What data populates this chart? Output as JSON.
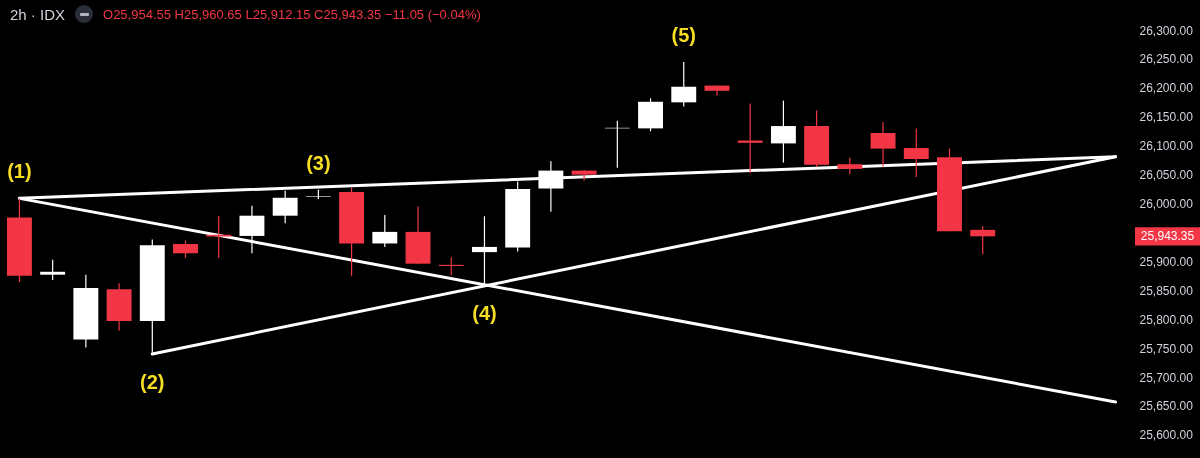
{
  "chart_data": {
    "type": "candlestick",
    "title": "2h · IDX",
    "subtitle": "O25,954.55 H25,960.65 L25,912.15 C25,943.35 −11.05 (−0.04%)",
    "categories": [
      null,
      null,
      null,
      null,
      null,
      null,
      null,
      null,
      null,
      null,
      null,
      null,
      null,
      null,
      null,
      null,
      null,
      null,
      null,
      null,
      null,
      null,
      null,
      null,
      null,
      null,
      null,
      null,
      null,
      null,
      null,
      null,
      null,
      null
    ],
    "ohlc": [
      [
        25976,
        26009,
        25864,
        25875
      ],
      [
        25877,
        25903,
        25868,
        25882
      ],
      [
        25765,
        25877,
        25751,
        25854
      ],
      [
        25852,
        25862,
        25780,
        25797
      ],
      [
        25797,
        25938,
        25740,
        25928
      ],
      [
        25930,
        25936,
        25906,
        25914
      ],
      [
        25946,
        25978,
        25906,
        25943
      ],
      [
        25944,
        25996,
        25914,
        25979
      ],
      [
        25979,
        26022,
        25966,
        26010
      ],
      [
        26012,
        26024,
        26008,
        26013
      ],
      [
        26020,
        26028,
        25875,
        25931
      ],
      [
        25931,
        25980,
        25925,
        25951
      ],
      [
        25951,
        25995,
        25895,
        25896
      ],
      [
        25894,
        25907,
        25876,
        25892
      ],
      [
        25916,
        25978,
        25859,
        25925
      ],
      [
        25924,
        26038,
        25917,
        26025
      ],
      [
        26026,
        26073,
        25986,
        26057
      ],
      [
        26057,
        26058,
        26040,
        26050
      ],
      [
        26130,
        26143,
        26062,
        26131
      ],
      [
        26130,
        26182,
        26125,
        26176
      ],
      [
        26175,
        26245,
        26168,
        26202
      ],
      [
        26204,
        26204,
        26187,
        26195
      ],
      [
        26109,
        26173,
        26053,
        26105
      ],
      [
        26104,
        26178,
        26071,
        26134
      ],
      [
        26134,
        26161,
        26063,
        26067
      ],
      [
        26068,
        26079,
        26051,
        26060
      ],
      [
        26122,
        26141,
        26064,
        26095
      ],
      [
        26096,
        26130,
        26046,
        26077
      ],
      [
        26080,
        26095,
        25952,
        25952
      ],
      [
        25954.55,
        25960.65,
        25912.15,
        25943.35
      ],
      null,
      null,
      null,
      null
    ],
    "colors": [
      "#f23645",
      "#ffffff",
      "#ffffff",
      "#f23645",
      "#ffffff",
      "#f23645",
      "#f23645",
      "#ffffff",
      "#ffffff",
      "#ffffff",
      "#f23645",
      "#ffffff",
      "#f23645",
      "#f23645",
      "#ffffff",
      "#ffffff",
      "#ffffff",
      "#f23645",
      "#ffffff",
      "#ffffff",
      "#ffffff",
      "#f23645",
      "#f23645",
      "#ffffff",
      "#f23645",
      "#f23645",
      "#f23645",
      "#f23645",
      "#f23645",
      "#f23645",
      null,
      null,
      null,
      null
    ],
    "series": [
      {
        "type": "line",
        "color": "#ffffff",
        "values": [
          26009,
          null,
          null,
          null,
          null,
          null,
          null,
          null,
          null,
          null,
          null,
          null,
          null,
          null,
          null,
          null,
          null,
          null,
          null,
          null,
          null,
          null,
          null,
          null,
          null,
          null,
          null,
          null,
          null,
          null,
          null,
          null,
          null,
          26081
        ]
      },
      {
        "type": "line",
        "color": "#ffffff",
        "values": [
          26009,
          null,
          null,
          null,
          null,
          null,
          null,
          null,
          null,
          null,
          null,
          null,
          null,
          null,
          null,
          null,
          null,
          null,
          null,
          null,
          null,
          null,
          null,
          null,
          null,
          null,
          null,
          null,
          null,
          null,
          null,
          null,
          null,
          25657
        ]
      },
      {
        "type": "line",
        "color": "#ffffff",
        "values": [
          null,
          null,
          null,
          null,
          25740,
          null,
          null,
          null,
          null,
          null,
          null,
          null,
          null,
          null,
          null,
          null,
          null,
          null,
          null,
          null,
          null,
          null,
          null,
          null,
          null,
          null,
          null,
          null,
          null,
          null,
          null,
          null,
          null,
          26081
        ]
      }
    ],
    "ylim": [
      25560,
      26352
    ],
    "yticks": [
      {
        "value": 25600,
        "label": "25,600.00"
      },
      {
        "value": 25650,
        "label": "25,650.00"
      },
      {
        "value": 25700,
        "label": "25,700.00"
      },
      {
        "value": 25750,
        "label": "25,750.00"
      },
      {
        "value": 25800,
        "label": "25,800.00"
      },
      {
        "value": 25850,
        "label": "25,850.00"
      },
      {
        "value": 25900,
        "label": "25,900.00"
      },
      {
        "value": 26000,
        "label": "26,000.00"
      },
      {
        "value": 26050,
        "label": "26,050.00"
      },
      {
        "value": 26100,
        "label": "26,100.00"
      },
      {
        "value": 26150,
        "label": "26,150.00"
      },
      {
        "value": 26200,
        "label": "26,200.00"
      },
      {
        "value": 26250,
        "label": "26,250.00"
      },
      {
        "value": 26300,
        "label": "26,300.00"
      }
    ],
    "tick_labels": "y",
    "annotations": [
      {
        "text": "(1)",
        "y": 26009
      },
      {
        "text": "(2)",
        "y": 25740
      },
      {
        "text": "(3)",
        "y": 26024
      },
      {
        "text": "(4)",
        "y": 25859
      },
      {
        "text": "(5)",
        "y": 26245
      },
      "25,943.35"
    ]
  }
}
